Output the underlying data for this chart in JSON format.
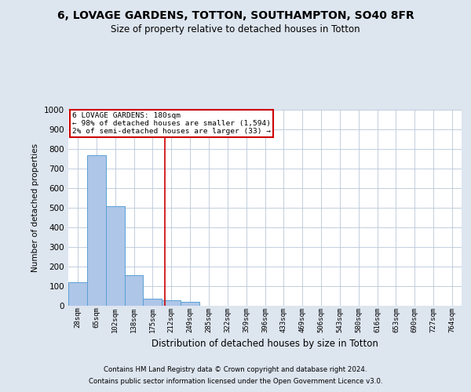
{
  "title": "6, LOVAGE GARDENS, TOTTON, SOUTHAMPTON, SO40 8FR",
  "subtitle": "Size of property relative to detached houses in Totton",
  "xlabel": "Distribution of detached houses by size in Totton",
  "ylabel": "Number of detached properties",
  "bin_labels": [
    "28sqm",
    "65sqm",
    "102sqm",
    "138sqm",
    "175sqm",
    "212sqm",
    "249sqm",
    "285sqm",
    "322sqm",
    "359sqm",
    "396sqm",
    "433sqm",
    "469sqm",
    "506sqm",
    "543sqm",
    "580sqm",
    "616sqm",
    "653sqm",
    "690sqm",
    "727sqm",
    "764sqm"
  ],
  "bar_heights": [
    120,
    770,
    510,
    155,
    35,
    30,
    20,
    0,
    0,
    0,
    0,
    0,
    0,
    0,
    0,
    0,
    0,
    0,
    0,
    0,
    0
  ],
  "bar_color": "#aec6e8",
  "bar_edge_color": "#5a9fd4",
  "property_line_x": 4.65,
  "property_line_color": "#cc0000",
  "annotation_text": "6 LOVAGE GARDENS: 180sqm\n← 98% of detached houses are smaller (1,594)\n2% of semi-detached houses are larger (33) →",
  "annotation_box_color": "#cc0000",
  "ylim": [
    0,
    1000
  ],
  "yticks": [
    0,
    100,
    200,
    300,
    400,
    500,
    600,
    700,
    800,
    900,
    1000
  ],
  "footer_line1": "Contains HM Land Registry data © Crown copyright and database right 2024.",
  "footer_line2": "Contains public sector information licensed under the Open Government Licence v3.0.",
  "background_color": "#dde5ef",
  "plot_background": "#ffffff",
  "grid_color": "#b8c8d8"
}
